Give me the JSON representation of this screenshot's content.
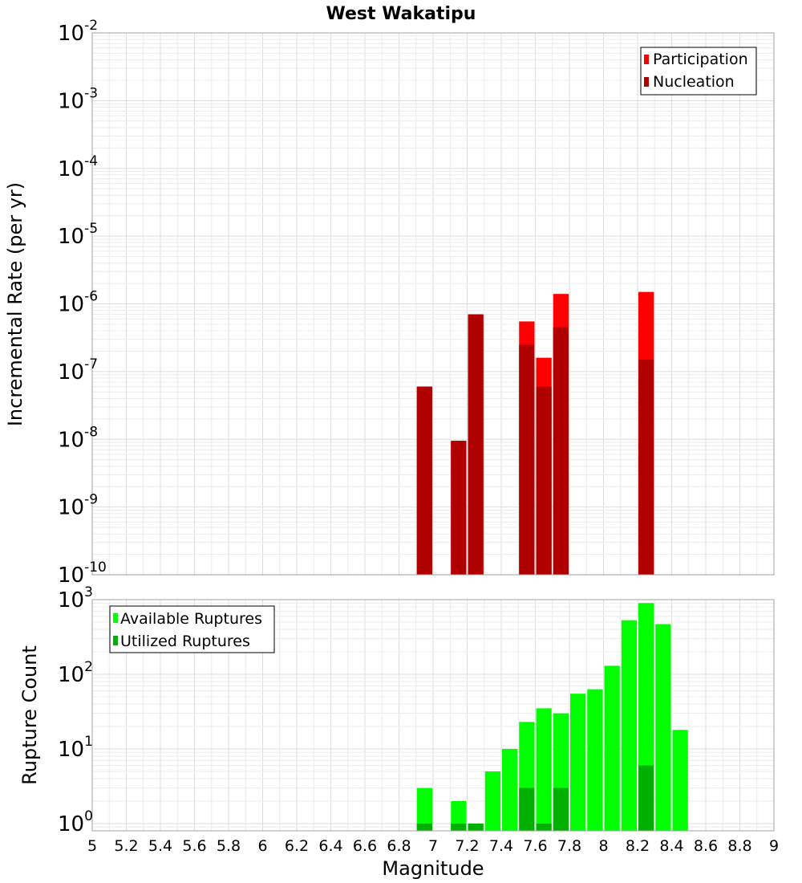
{
  "chart_data": {
    "title": "West Wakatipu",
    "xlabel": "Magnitude",
    "xlim": [
      5,
      9
    ],
    "xticks": [
      "5",
      "5.2",
      "5.4",
      "5.6",
      "5.8",
      "6",
      "6.2",
      "6.4",
      "6.6",
      "6.8",
      "7",
      "7.2",
      "7.4",
      "7.6",
      "7.8",
      "8",
      "8.2",
      "8.4",
      "8.6",
      "8.8",
      "9"
    ],
    "bin_width": 0.1,
    "colors": {
      "participation": "#ff0000",
      "nucleation": "#b00000",
      "available": "#00ff00",
      "utilized": "#00b000"
    },
    "panels": [
      {
        "type": "bar",
        "ylabel": "Incremental Rate (per yr)",
        "scale": "log",
        "ylim": [
          1e-10,
          0.01
        ],
        "yticks": [
          {
            "base": "10",
            "exp": "-10",
            "value": 1e-10
          },
          {
            "base": "10",
            "exp": "-9",
            "value": 1e-09
          },
          {
            "base": "10",
            "exp": "-8",
            "value": 1e-08
          },
          {
            "base": "10",
            "exp": "-7",
            "value": 1e-07
          },
          {
            "base": "10",
            "exp": "-6",
            "value": 1e-06
          },
          {
            "base": "10",
            "exp": "-5",
            "value": 1e-05
          },
          {
            "base": "10",
            "exp": "-4",
            "value": 0.0001
          },
          {
            "base": "10",
            "exp": "-3",
            "value": 0.001
          },
          {
            "base": "10",
            "exp": "-2",
            "value": 0.01
          }
        ],
        "legend": {
          "position": "top-right"
        },
        "series": [
          {
            "name": "Participation",
            "color": "#ff0000",
            "x": [
              6.95,
              7.15,
              7.25,
              7.55,
              7.65,
              7.75,
              8.25
            ],
            "values": [
              6e-08,
              9.5e-09,
              7e-07,
              5.5e-07,
              1.6e-07,
              1.4e-06,
              1.5e-06
            ]
          },
          {
            "name": "Nucleation",
            "color": "#b00000",
            "x": [
              6.95,
              7.15,
              7.25,
              7.55,
              7.65,
              7.75,
              8.25
            ],
            "values": [
              6e-08,
              9.5e-09,
              7e-07,
              2.5e-07,
              6e-08,
              4.5e-07,
              1.5e-07
            ]
          }
        ]
      },
      {
        "type": "bar",
        "ylabel": "Rupture Count",
        "scale": "log",
        "ylim": [
          0.8,
          1000
        ],
        "yticks": [
          {
            "base": "10",
            "exp": "0",
            "value": 1
          },
          {
            "base": "10",
            "exp": "1",
            "value": 10
          },
          {
            "base": "10",
            "exp": "2",
            "value": 100
          },
          {
            "base": "10",
            "exp": "3",
            "value": 1000
          }
        ],
        "legend": {
          "position": "top-left"
        },
        "series": [
          {
            "name": "Available Ruptures",
            "color": "#00ff00",
            "x": [
              6.95,
              7.15,
              7.25,
              7.35,
              7.45,
              7.55,
              7.65,
              7.75,
              7.85,
              7.95,
              8.05,
              8.15,
              8.25,
              8.35,
              8.45
            ],
            "values": [
              3,
              2,
              1,
              5,
              10,
              23,
              35,
              30,
              55,
              63,
              130,
              530,
              900,
              470,
              18
            ]
          },
          {
            "name": "Utilized Ruptures",
            "color": "#00b000",
            "x": [
              6.95,
              7.15,
              7.25,
              7.55,
              7.65,
              7.75,
              8.25
            ],
            "values": [
              1,
              1,
              1,
              3,
              1,
              3,
              6
            ]
          }
        ]
      }
    ]
  }
}
